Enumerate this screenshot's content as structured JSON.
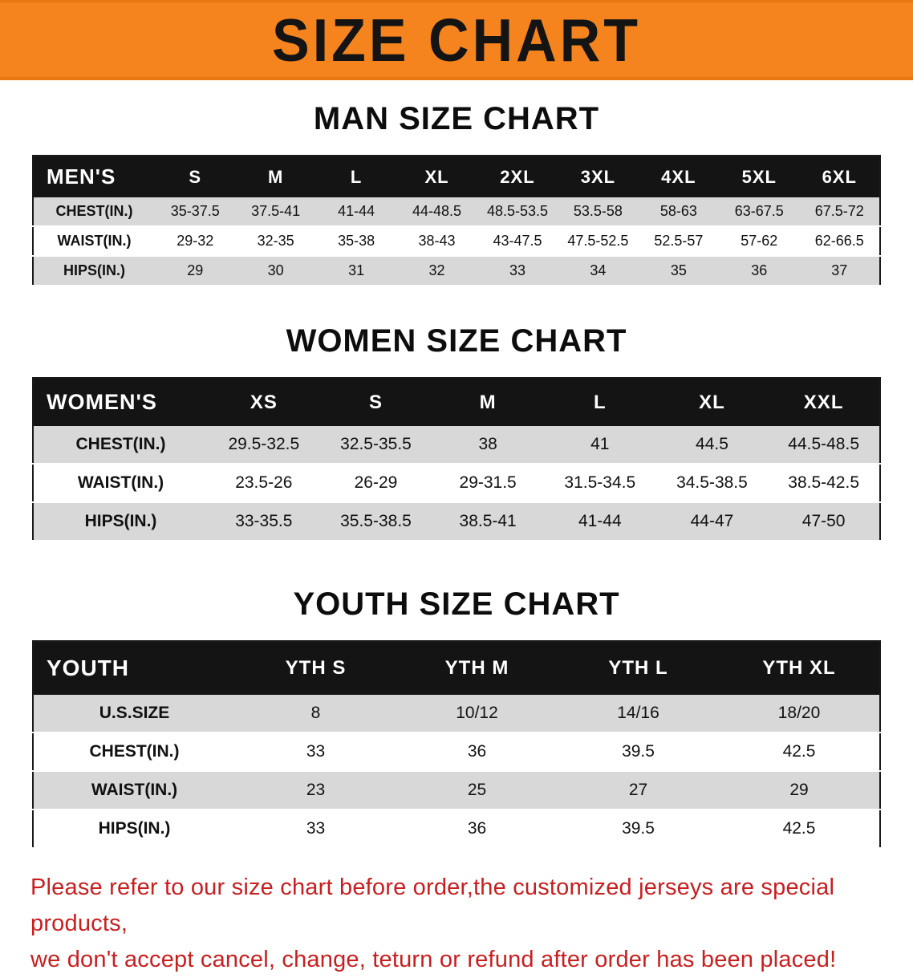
{
  "banner": {
    "title": "SIZE CHART"
  },
  "sections": [
    {
      "heading": "MAN SIZE CHART",
      "table": {
        "header": [
          "MEN'S",
          "S",
          "M",
          "L",
          "XL",
          "2XL",
          "3XL",
          "4XL",
          "5XL",
          "6XL"
        ],
        "rows": [
          [
            "CHEST(IN.)",
            "35-37.5",
            "37.5-41",
            "41-44",
            "44-48.5",
            "48.5-53.5",
            "53.5-58",
            "58-63",
            "63-67.5",
            "67.5-72"
          ],
          [
            "WAIST(IN.)",
            "29-32",
            "32-35",
            "35-38",
            "38-43",
            "43-47.5",
            "47.5-52.5",
            "52.5-57",
            "57-62",
            "62-66.5"
          ],
          [
            "HIPS(IN.)",
            "29",
            "30",
            "31",
            "32",
            "33",
            "34",
            "35",
            "36",
            "37"
          ]
        ]
      }
    },
    {
      "heading": "WOMEN SIZE CHART",
      "table": {
        "header": [
          "WOMEN'S",
          "XS",
          "S",
          "M",
          "L",
          "XL",
          "XXL"
        ],
        "rows": [
          [
            "CHEST(IN.)",
            "29.5-32.5",
            "32.5-35.5",
            "38",
            "41",
            "44.5",
            "44.5-48.5"
          ],
          [
            "WAIST(IN.)",
            "23.5-26",
            "26-29",
            "29-31.5",
            "31.5-34.5",
            "34.5-38.5",
            "38.5-42.5"
          ],
          [
            "HIPS(IN.)",
            "33-35.5",
            "35.5-38.5",
            "38.5-41",
            "41-44",
            "44-47",
            "47-50"
          ]
        ]
      }
    },
    {
      "heading": "YOUTH SIZE CHART",
      "table": {
        "header": [
          "YOUTH",
          "YTH S",
          "YTH M",
          "YTH L",
          "YTH XL"
        ],
        "rows": [
          [
            "U.S.SIZE",
            "8",
            "10/12",
            "14/16",
            "18/20"
          ],
          [
            "CHEST(IN.)",
            "33",
            "36",
            "39.5",
            "42.5"
          ],
          [
            "WAIST(IN.)",
            "23",
            "25",
            "27",
            "29"
          ],
          [
            "HIPS(IN.)",
            "33",
            "36",
            "39.5",
            "42.5"
          ]
        ]
      }
    }
  ],
  "footer": {
    "line1": "Please refer to our size chart before order,the customized jerseys are special products,",
    "line2": "we don't accept cancel, change, teturn or refund after order has been placed!"
  },
  "colors": {
    "banner_orange": "#f5841e",
    "table_header_black": "#141414",
    "row_gray": "#d8d8d8",
    "note_red": "#c81f1f"
  }
}
